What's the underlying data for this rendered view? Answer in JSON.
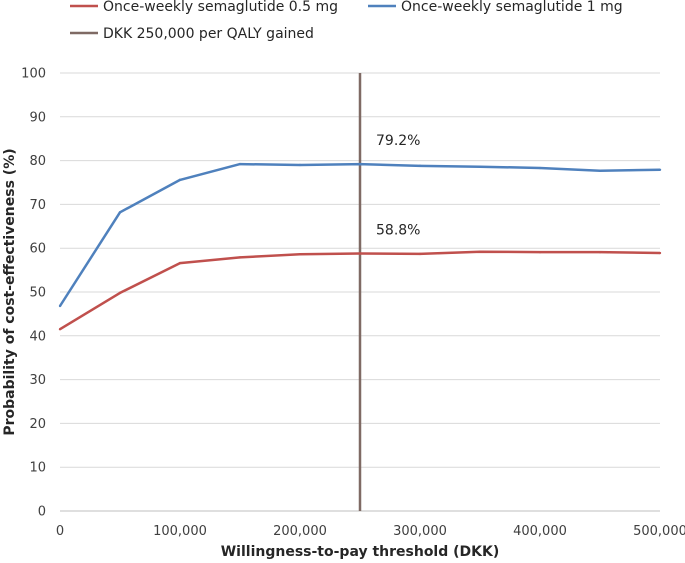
{
  "chart_data": {
    "type": "line",
    "xlabel": "Willingness-to-pay threshold (DKK)",
    "ylabel": "Probability of cost-effectiveness (%)",
    "xlim": [
      0,
      500000
    ],
    "ylim": [
      0,
      100
    ],
    "x_ticks": [
      0,
      100000,
      200000,
      300000,
      400000,
      500000
    ],
    "x_tick_labels": [
      "0",
      "100,000",
      "200,000",
      "300,000",
      "400,000",
      "500,000"
    ],
    "y_ticks": [
      0,
      10,
      20,
      30,
      40,
      50,
      60,
      70,
      80,
      90,
      100
    ],
    "y_tick_labels": [
      "0",
      "10",
      "20",
      "30",
      "40",
      "50",
      "60",
      "70",
      "80",
      "90",
      "100"
    ],
    "grid": "horizontal",
    "legend_position": "top",
    "x": [
      0,
      50000,
      100000,
      150000,
      200000,
      250000,
      300000,
      350000,
      400000,
      450000,
      500000
    ],
    "series": [
      {
        "name": "Once-weekly semaglutide 0.5 mg",
        "color": "#c0504d",
        "values": [
          41.5,
          49.8,
          56.6,
          57.9,
          58.6,
          58.8,
          58.7,
          59.2,
          59.1,
          59.1,
          58.9
        ]
      },
      {
        "name": "Once-weekly semaglutide 1 mg",
        "color": "#4f81bd",
        "values": [
          46.8,
          68.2,
          75.6,
          79.2,
          79.0,
          79.2,
          78.8,
          78.6,
          78.3,
          77.7,
          77.9
        ]
      }
    ],
    "reference_line": {
      "name": "DKK 250,000 per QALY gained",
      "x": 250000,
      "color": "#7f6a64"
    },
    "annotations": [
      {
        "text": "79.2%",
        "x": 250000,
        "y": 79.2
      },
      {
        "text": "58.8%",
        "x": 250000,
        "y": 58.8
      }
    ]
  }
}
